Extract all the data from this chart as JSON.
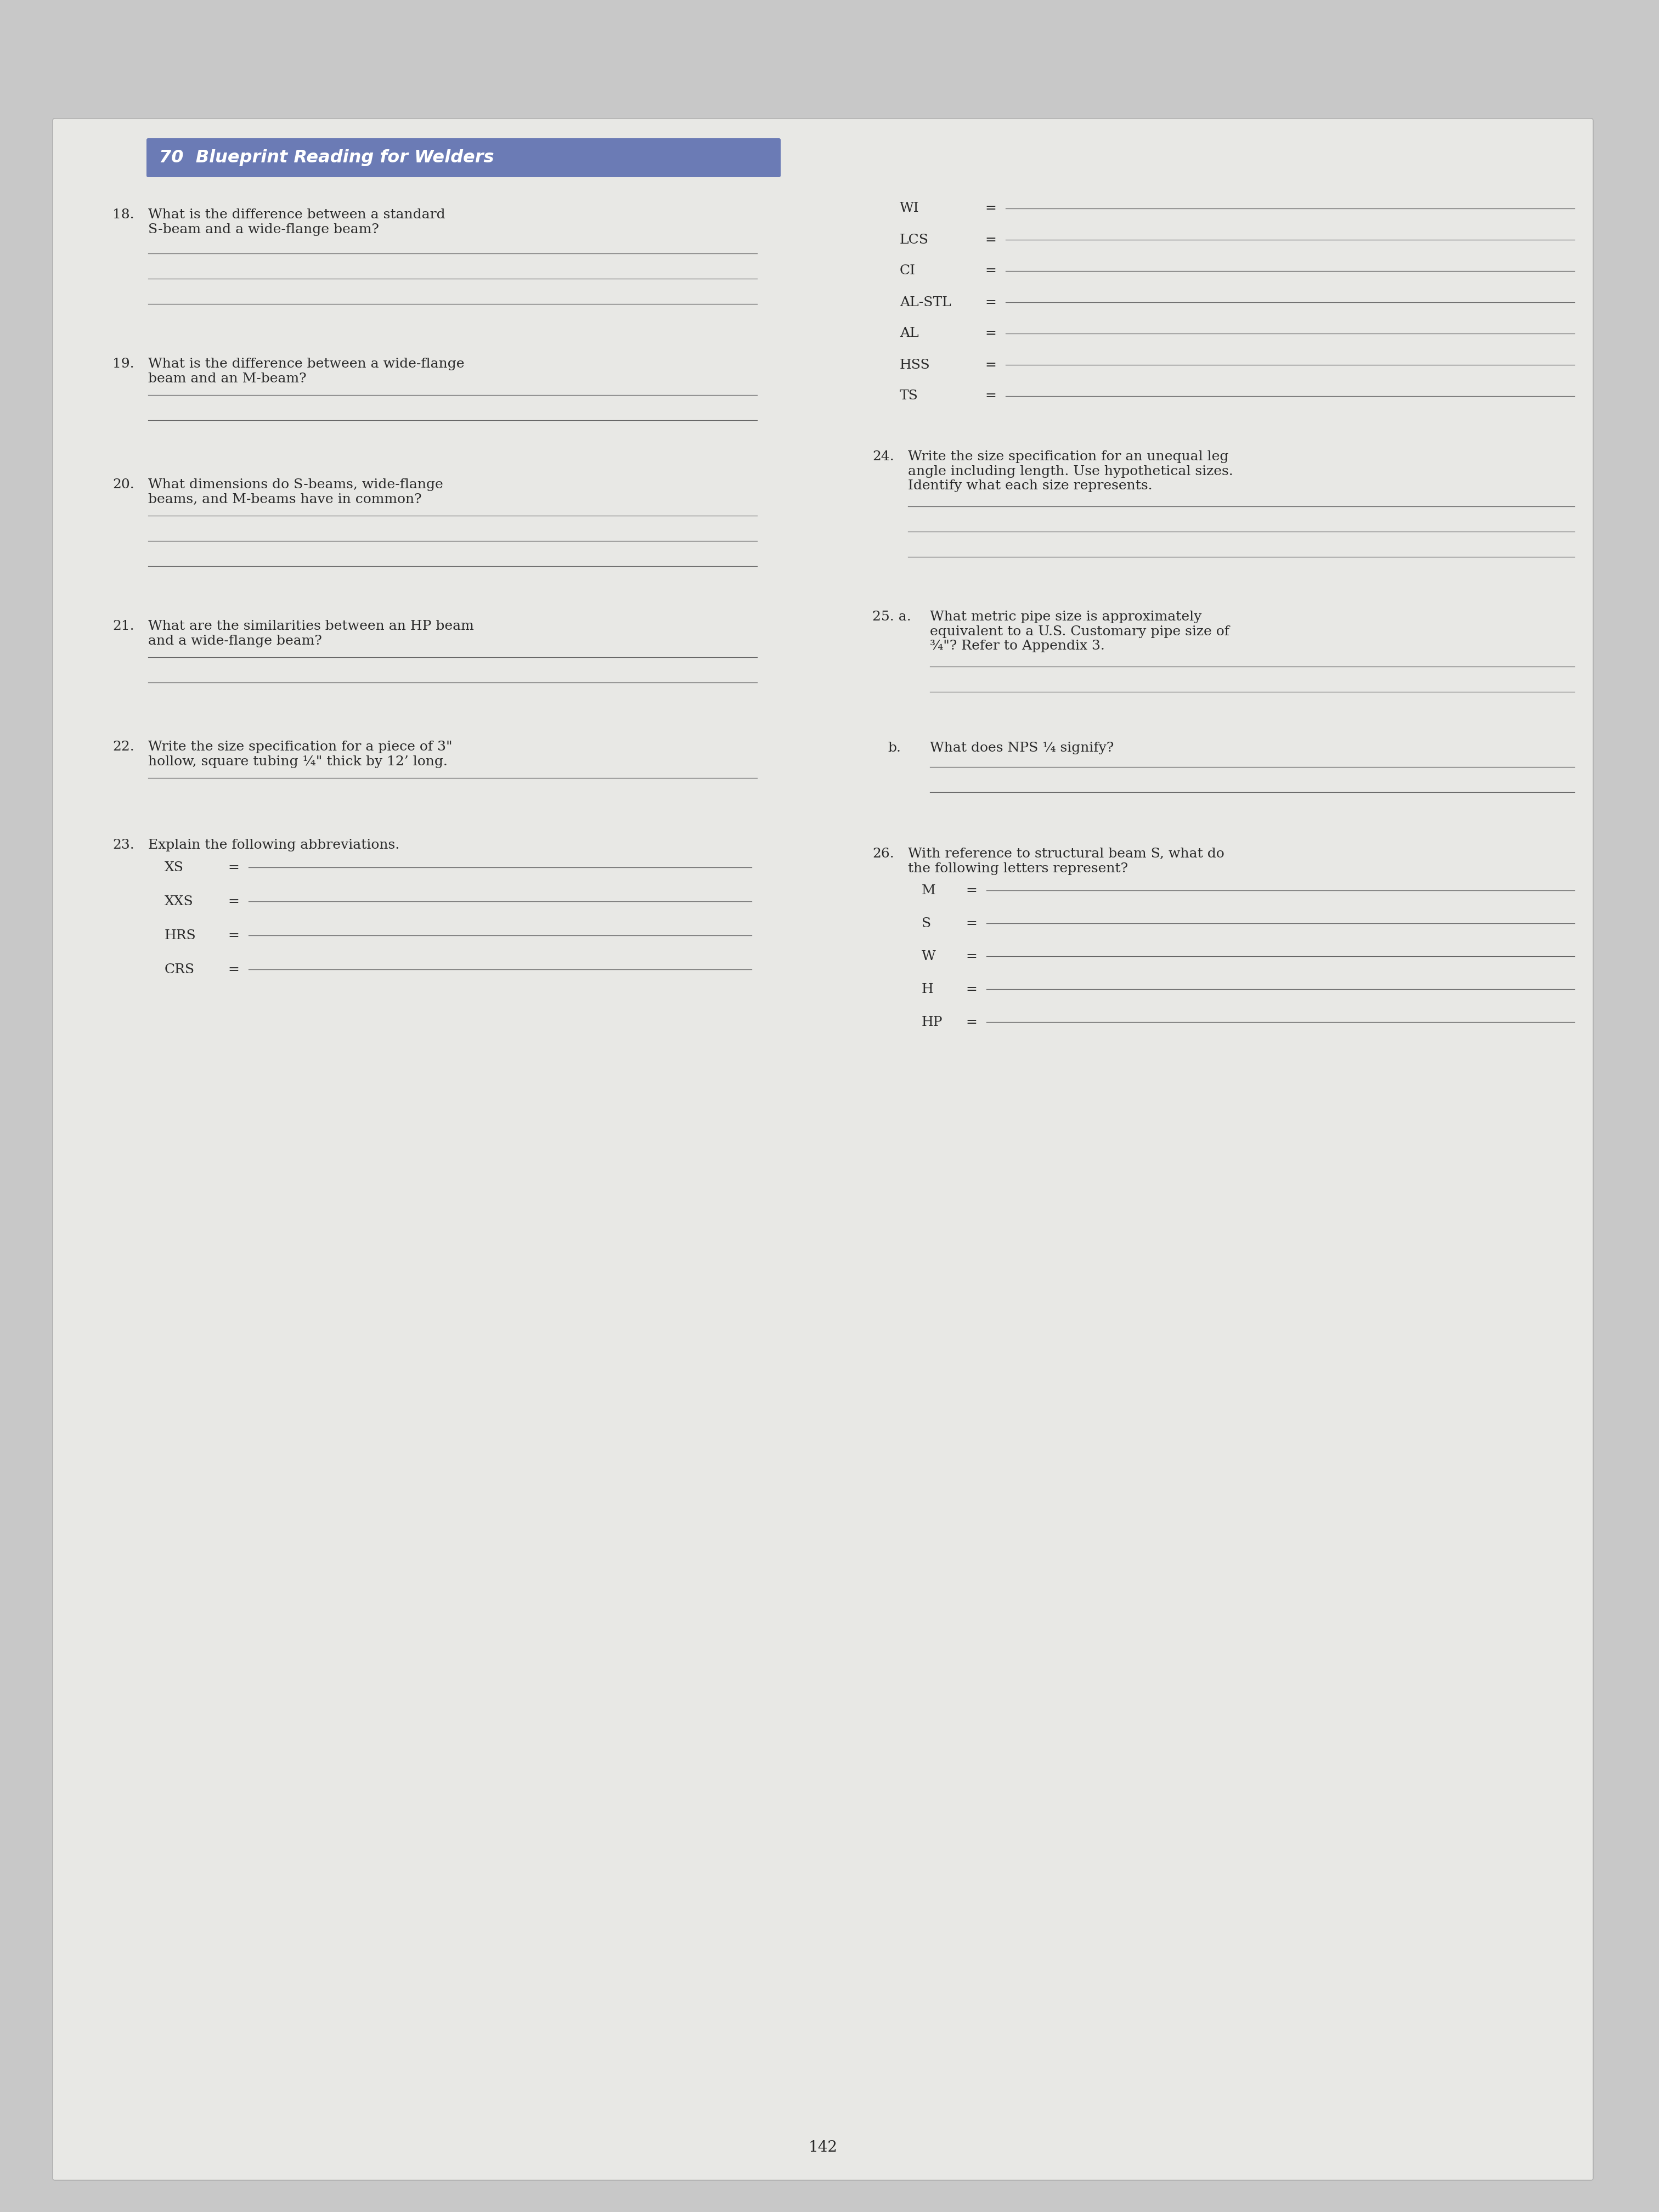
{
  "page_bg": "#c8c8c8",
  "paper_bg": "#e8e8e5",
  "header_bg": "#6b7bb5",
  "header_text": "70  Blueprint Reading for Welders",
  "header_text_color": "#ffffff",
  "line_color": "#666666",
  "question_color": "#2a2a2a",
  "abbrev_left": [
    {
      "label": "XS"
    },
    {
      "label": "XXS"
    },
    {
      "label": "HRS"
    },
    {
      "label": "CRS"
    }
  ],
  "abbrev_right_top": [
    {
      "label": "WI"
    },
    {
      "label": "LCS"
    },
    {
      "label": "CI"
    },
    {
      "label": "AL-STL"
    },
    {
      "label": "AL"
    },
    {
      "label": "HSS"
    },
    {
      "label": "TS"
    }
  ],
  "abbrev_q26": [
    {
      "label": "M"
    },
    {
      "label": "S"
    },
    {
      "label": "W"
    },
    {
      "label": "H"
    },
    {
      "label": "HP"
    }
  ],
  "page_num": "142"
}
